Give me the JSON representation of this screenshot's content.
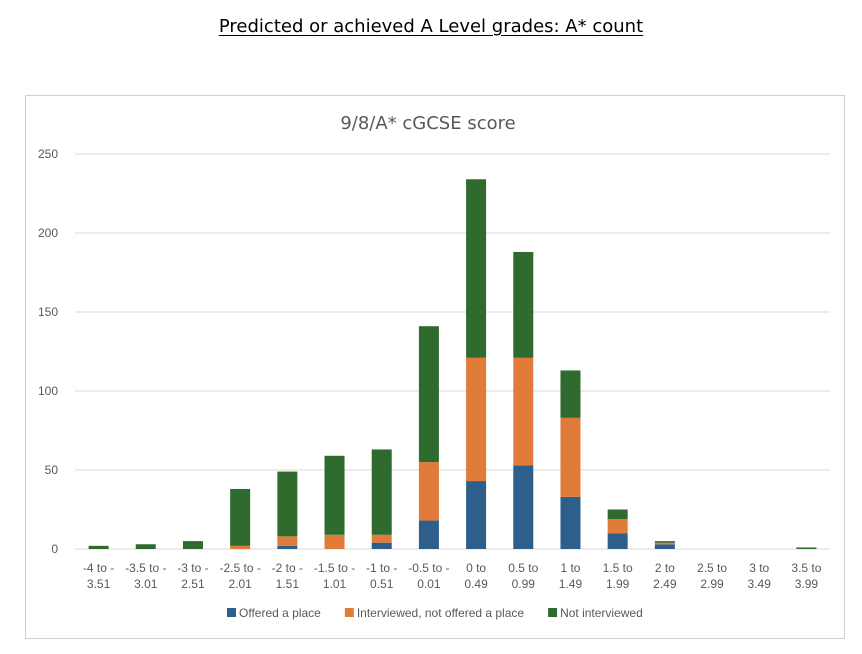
{
  "page": {
    "heading": "Predicted or achieved A Level grades: A* count"
  },
  "chart_data": {
    "type": "bar",
    "stacked": true,
    "title": "9/8/A* cGCSE score",
    "xlabel": "",
    "ylabel": "",
    "ylim": [
      0,
      250
    ],
    "yticks": [
      0,
      50,
      100,
      150,
      200,
      250
    ],
    "grid": true,
    "legend_position": "bottom",
    "categories": [
      [
        "-4 to -",
        "3.51"
      ],
      [
        "-3.5 to -",
        "3.01"
      ],
      [
        "-3 to -",
        "2.51"
      ],
      [
        "-2.5 to -",
        "2.01"
      ],
      [
        "-2 to -",
        "1.51"
      ],
      [
        "-1.5 to -",
        "1.01"
      ],
      [
        "-1 to -",
        "0.51"
      ],
      [
        "-0.5 to -",
        "0.01"
      ],
      [
        "0 to",
        "0.49"
      ],
      [
        "0.5 to",
        "0.99"
      ],
      [
        "1 to",
        "1.49"
      ],
      [
        "1.5 to",
        "1.99"
      ],
      [
        "2 to",
        "2.49"
      ],
      [
        "2.5 to",
        "2.99"
      ],
      [
        "3 to",
        "3.49"
      ],
      [
        "3.5 to",
        "3.99"
      ]
    ],
    "series": [
      {
        "name": "Offered a place",
        "color": "#2e5f8a",
        "values": [
          0,
          0,
          0,
          0,
          2,
          0,
          4,
          18,
          43,
          53,
          33,
          10,
          3,
          0,
          0,
          0
        ]
      },
      {
        "name": "Interviewed, not offered a place",
        "color": "#e07b39",
        "values": [
          0,
          0,
          0,
          2,
          6,
          9,
          5,
          37,
          78,
          68,
          50,
          9,
          1,
          0,
          0,
          0
        ]
      },
      {
        "name": "Not interviewed",
        "color": "#2f6b2f",
        "values": [
          2,
          3,
          5,
          36,
          41,
          50,
          54,
          86,
          113,
          67,
          30,
          6,
          1,
          0,
          0,
          1
        ]
      }
    ]
  }
}
